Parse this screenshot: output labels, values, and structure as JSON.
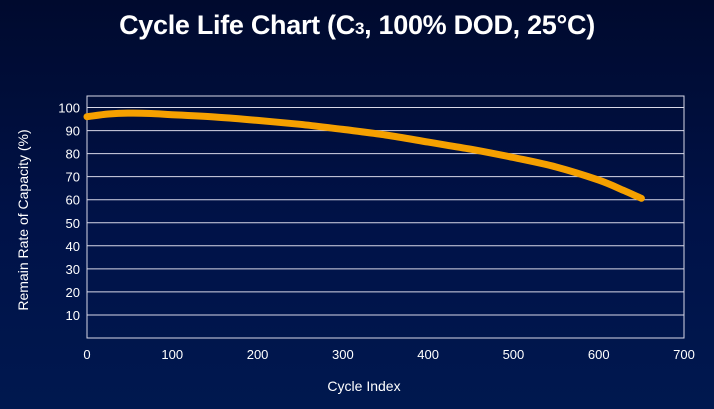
{
  "chart_data": {
    "type": "line",
    "title_main": "Cycle Life Chart (C",
    "title_sub": "3",
    "title_rest": ", 100% DOD, 25°C)",
    "xlabel": "Cycle Index",
    "ylabel": "Remain Rate of Capacity (%)",
    "xlim": [
      0,
      700
    ],
    "ylim": [
      0,
      105
    ],
    "x_ticks": [
      0,
      100,
      200,
      300,
      400,
      500,
      600,
      700
    ],
    "y_ticks": [
      10,
      20,
      30,
      40,
      50,
      60,
      70,
      80,
      90,
      100
    ],
    "grid": true,
    "line_color": "#f5a000",
    "series": [
      {
        "x": [
          0,
          25,
          50,
          75,
          100,
          150,
          200,
          250,
          300,
          350,
          400,
          450,
          500,
          550,
          600,
          630,
          650
        ],
        "values": [
          96,
          97.2,
          97.6,
          97.4,
          96.9,
          95.9,
          94.4,
          92.7,
          90.5,
          88.1,
          85.0,
          81.9,
          78.3,
          74.2,
          68.5,
          63.9,
          60.6
        ]
      }
    ]
  }
}
